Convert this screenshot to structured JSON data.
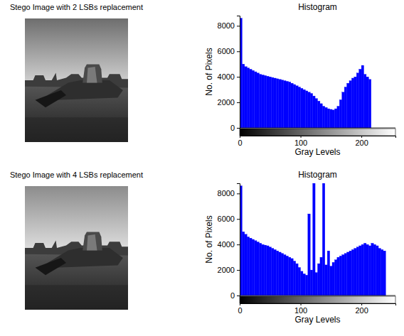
{
  "chart_data": [
    {
      "type": "image",
      "title": "Stego Image with 2 LSBs replacement"
    },
    {
      "type": "histogram",
      "title": "Histogram",
      "xlabel": "Gray Levels",
      "ylabel": "No. of Pixels",
      "color": "#0000ff",
      "bins": [
        0,
        4,
        8,
        12,
        16,
        20,
        24,
        28,
        32,
        36,
        40,
        44,
        48,
        52,
        56,
        60,
        64,
        68,
        72,
        76,
        80,
        84,
        88,
        92,
        96,
        100,
        104,
        108,
        112,
        116,
        120,
        124,
        128,
        132,
        136,
        140,
        144,
        148,
        152,
        156,
        160,
        164,
        168,
        172,
        176,
        180,
        184,
        188,
        192,
        196,
        200,
        204,
        208,
        212,
        216,
        220,
        224,
        228,
        232,
        236,
        240,
        244,
        248,
        252,
        256
      ],
      "values": [
        8600,
        5000,
        4800,
        4700,
        4600,
        4500,
        4400,
        4300,
        4200,
        4150,
        4100,
        4050,
        4000,
        3950,
        3900,
        3850,
        3800,
        3750,
        3700,
        3650,
        3600,
        3500,
        3400,
        3300,
        3200,
        3100,
        3000,
        2900,
        2800,
        2700,
        2500,
        2300,
        2100,
        1900,
        1700,
        1600,
        1500,
        1450,
        1400,
        1500,
        1700,
        2200,
        2800,
        3200,
        3500,
        3700,
        3900,
        4000,
        4300,
        4600,
        4900,
        4200,
        4000,
        3800,
        0,
        0,
        0,
        0,
        0,
        0,
        0,
        0,
        0,
        0
      ],
      "xlim": [
        0,
        256
      ],
      "ylim": [
        0,
        8800
      ],
      "xticks": [
        0,
        100,
        200
      ],
      "yticks": [
        0,
        2000,
        4000,
        6000,
        8000
      ]
    },
    {
      "type": "image",
      "title": "Stego Image with 4 LSBs replacement"
    },
    {
      "type": "histogram",
      "title": "Histogram",
      "xlabel": "Gray Levels",
      "ylabel": "No. of Pixels",
      "color": "#0000ff",
      "bins": [
        0,
        4,
        8,
        12,
        16,
        20,
        24,
        28,
        32,
        36,
        40,
        44,
        48,
        52,
        56,
        60,
        64,
        68,
        72,
        76,
        80,
        84,
        88,
        92,
        96,
        100,
        104,
        108,
        112,
        116,
        120,
        124,
        128,
        132,
        136,
        140,
        144,
        148,
        152,
        156,
        160,
        164,
        168,
        172,
        176,
        180,
        184,
        188,
        192,
        196,
        200,
        204,
        208,
        212,
        216,
        220,
        224,
        228,
        232,
        236,
        240,
        244,
        248,
        252,
        256
      ],
      "values": [
        8600,
        5000,
        4800,
        4600,
        4500,
        4400,
        4300,
        4200,
        4100,
        4000,
        3950,
        3900,
        3800,
        3700,
        3600,
        3500,
        3400,
        3300,
        3200,
        3100,
        3000,
        2900,
        2700,
        2500,
        2200,
        1900,
        1700,
        1600,
        6400,
        2000,
        8800,
        1800,
        2500,
        3000,
        8800,
        2400,
        3500,
        2300,
        2600,
        2800,
        3000,
        3100,
        3200,
        3300,
        3400,
        3500,
        3600,
        3700,
        3800,
        3900,
        4000,
        4100,
        4000,
        3900,
        4100,
        4000,
        3900,
        3700,
        3600,
        3500,
        0,
        0,
        0,
        0
      ],
      "xlim": [
        0,
        256
      ],
      "ylim": [
        0,
        8800
      ],
      "xticks": [
        0,
        100,
        200
      ],
      "yticks": [
        0,
        2000,
        4000,
        6000,
        8000
      ]
    }
  ]
}
